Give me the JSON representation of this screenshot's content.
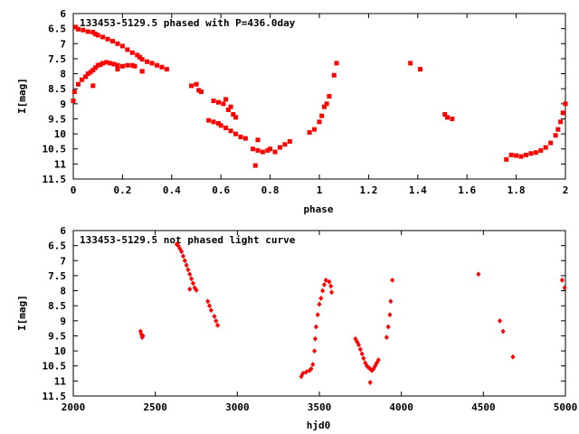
{
  "chart_data": [
    {
      "type": "scatter",
      "title": "133453-5129.5 phased with P=436.0day",
      "xlabel": "phase",
      "ylabel": "I[mag]",
      "xlim": [
        0,
        2
      ],
      "ylim": [
        11.5,
        6
      ],
      "y_inverted": true,
      "xticks": [
        "0",
        "0.2",
        "0.4",
        "0.6",
        "0.8",
        "1",
        "1.2",
        "1.4",
        "1.6",
        "1.8",
        "2"
      ],
      "yticks": [
        "6",
        "6.5",
        "7",
        "7.5",
        "8",
        "8.5",
        "9",
        "9.5",
        "10",
        "10.5",
        "11",
        "11.5"
      ],
      "grid": false,
      "marker_color": "#ff0000",
      "series": [
        {
          "points": [
            [
              0.0,
              8.9
            ],
            [
              0.005,
              8.6
            ],
            [
              0.02,
              8.35
            ],
            [
              0.035,
              8.2
            ],
            [
              0.05,
              8.1
            ],
            [
              0.06,
              8.0
            ],
            [
              0.07,
              7.95
            ],
            [
              0.08,
              7.88
            ],
            [
              0.09,
              7.8
            ],
            [
              0.1,
              7.72
            ],
            [
              0.11,
              7.7
            ],
            [
              0.12,
              7.65
            ],
            [
              0.135,
              7.62
            ],
            [
              0.15,
              7.65
            ],
            [
              0.165,
              7.68
            ],
            [
              0.18,
              7.72
            ],
            [
              0.2,
              7.75
            ],
            [
              0.22,
              7.72
            ],
            [
              0.25,
              7.75
            ],
            [
              0.28,
              7.92
            ],
            [
              0.01,
              6.45
            ],
            [
              0.02,
              6.52
            ],
            [
              0.04,
              6.55
            ],
            [
              0.06,
              6.6
            ],
            [
              0.08,
              6.62
            ],
            [
              0.09,
              6.68
            ],
            [
              0.1,
              6.72
            ],
            [
              0.12,
              6.78
            ],
            [
              0.14,
              6.85
            ],
            [
              0.16,
              6.92
            ],
            [
              0.18,
              7.0
            ],
            [
              0.2,
              7.08
            ],
            [
              0.22,
              7.2
            ],
            [
              0.24,
              7.3
            ],
            [
              0.26,
              7.38
            ],
            [
              0.27,
              7.45
            ],
            [
              0.28,
              7.52
            ],
            [
              0.3,
              7.6
            ],
            [
              0.32,
              7.65
            ],
            [
              0.34,
              7.72
            ],
            [
              0.36,
              7.78
            ],
            [
              0.38,
              7.85
            ],
            [
              0.08,
              8.4
            ],
            [
              0.18,
              7.85
            ],
            [
              0.24,
              7.72
            ],
            [
              0.28,
              7.92
            ],
            [
              0.48,
              8.4
            ],
            [
              0.5,
              8.35
            ],
            [
              0.52,
              8.6
            ],
            [
              0.51,
              8.55
            ],
            [
              0.55,
              9.55
            ],
            [
              0.57,
              9.6
            ],
            [
              0.59,
              9.65
            ],
            [
              0.6,
              9.72
            ],
            [
              0.62,
              9.8
            ],
            [
              0.64,
              9.9
            ],
            [
              0.66,
              10.0
            ],
            [
              0.68,
              10.1
            ],
            [
              0.7,
              10.15
            ],
            [
              0.57,
              8.9
            ],
            [
              0.59,
              8.95
            ],
            [
              0.61,
              9.0
            ],
            [
              0.62,
              8.85
            ],
            [
              0.63,
              9.2
            ],
            [
              0.64,
              9.1
            ],
            [
              0.65,
              9.35
            ],
            [
              0.66,
              9.45
            ],
            [
              0.73,
              10.5
            ],
            [
              0.75,
              10.55
            ],
            [
              0.77,
              10.6
            ],
            [
              0.79,
              10.55
            ],
            [
              0.8,
              10.5
            ],
            [
              0.74,
              11.05
            ],
            [
              0.75,
              10.2
            ],
            [
              0.82,
              10.6
            ],
            [
              0.84,
              10.45
            ],
            [
              0.86,
              10.35
            ],
            [
              0.88,
              10.25
            ],
            [
              0.96,
              9.95
            ],
            [
              0.98,
              9.85
            ],
            [
              1.0,
              9.6
            ],
            [
              1.01,
              9.4
            ],
            [
              1.02,
              9.1
            ],
            [
              1.03,
              9.0
            ],
            [
              1.04,
              8.75
            ],
            [
              1.06,
              8.05
            ],
            [
              1.07,
              7.65
            ],
            [
              1.37,
              7.65
            ],
            [
              1.41,
              7.85
            ],
            [
              1.51,
              9.35
            ],
            [
              1.52,
              9.45
            ],
            [
              1.54,
              9.5
            ],
            [
              1.76,
              10.85
            ],
            [
              1.78,
              10.7
            ],
            [
              1.8,
              10.72
            ],
            [
              1.82,
              10.75
            ],
            [
              1.84,
              10.7
            ],
            [
              1.86,
              10.65
            ],
            [
              1.88,
              10.62
            ],
            [
              1.9,
              10.55
            ],
            [
              1.92,
              10.45
            ],
            [
              1.94,
              10.3
            ],
            [
              1.96,
              10.05
            ],
            [
              1.97,
              9.85
            ],
            [
              1.98,
              9.6
            ],
            [
              1.99,
              9.3
            ],
            [
              2.0,
              9.0
            ]
          ]
        }
      ]
    },
    {
      "type": "scatter",
      "title": "133453-5129.5 not phased light curve",
      "xlabel": "hjd0",
      "ylabel": "I[mag]",
      "xlim": [
        2000,
        5000
      ],
      "ylim": [
        11.5,
        6
      ],
      "y_inverted": true,
      "xticks": [
        "2000",
        "2500",
        "3000",
        "3500",
        "4000",
        "4500",
        "5000"
      ],
      "yticks": [
        "6",
        "6.5",
        "7",
        "7.5",
        "8",
        "8.5",
        "9",
        "9.5",
        "10",
        "10.5",
        "11",
        "11.5"
      ],
      "grid": false,
      "marker_color": "#ff0000",
      "series": [
        {
          "points": [
            [
              2410,
              9.35
            ],
            [
              2415,
              9.45
            ],
            [
              2420,
              9.55
            ],
            [
              2425,
              9.5
            ],
            [
              2630,
              6.45
            ],
            [
              2640,
              6.5
            ],
            [
              2650,
              6.6
            ],
            [
              2660,
              6.7
            ],
            [
              2670,
              6.85
            ],
            [
              2680,
              7.0
            ],
            [
              2690,
              7.15
            ],
            [
              2700,
              7.3
            ],
            [
              2710,
              7.45
            ],
            [
              2720,
              7.6
            ],
            [
              2730,
              7.75
            ],
            [
              2740,
              7.9
            ],
            [
              2750,
              7.98
            ],
            [
              2710,
              7.95
            ],
            [
              2820,
              8.35
            ],
            [
              2830,
              8.5
            ],
            [
              2840,
              8.65
            ],
            [
              2860,
              8.85
            ],
            [
              2870,
              9.0
            ],
            [
              2880,
              9.15
            ],
            [
              3390,
              10.85
            ],
            [
              3400,
              10.75
            ],
            [
              3420,
              10.7
            ],
            [
              3440,
              10.65
            ],
            [
              3450,
              10.6
            ],
            [
              3460,
              10.45
            ],
            [
              3470,
              10.0
            ],
            [
              3475,
              9.6
            ],
            [
              3480,
              9.2
            ],
            [
              3490,
              8.8
            ],
            [
              3500,
              8.45
            ],
            [
              3510,
              8.25
            ],
            [
              3520,
              8.0
            ],
            [
              3530,
              7.8
            ],
            [
              3540,
              7.65
            ],
            [
              3560,
              7.7
            ],
            [
              3570,
              7.85
            ],
            [
              3575,
              8.05
            ],
            [
              3720,
              9.6
            ],
            [
              3730,
              9.7
            ],
            [
              3740,
              9.8
            ],
            [
              3750,
              9.95
            ],
            [
              3760,
              10.1
            ],
            [
              3770,
              10.25
            ],
            [
              3780,
              10.4
            ],
            [
              3790,
              10.5
            ],
            [
              3800,
              10.55
            ],
            [
              3810,
              10.6
            ],
            [
              3820,
              10.65
            ],
            [
              3830,
              10.6
            ],
            [
              3840,
              10.5
            ],
            [
              3850,
              10.4
            ],
            [
              3860,
              10.3
            ],
            [
              3810,
              11.05
            ],
            [
              3910,
              9.55
            ],
            [
              3920,
              9.2
            ],
            [
              3930,
              8.8
            ],
            [
              3935,
              8.35
            ],
            [
              3945,
              7.65
            ],
            [
              4470,
              7.45
            ],
            [
              4600,
              9.0
            ],
            [
              4620,
              9.35
            ],
            [
              4680,
              10.2
            ],
            [
              4980,
              7.65
            ],
            [
              4995,
              7.9
            ]
          ]
        }
      ]
    }
  ]
}
